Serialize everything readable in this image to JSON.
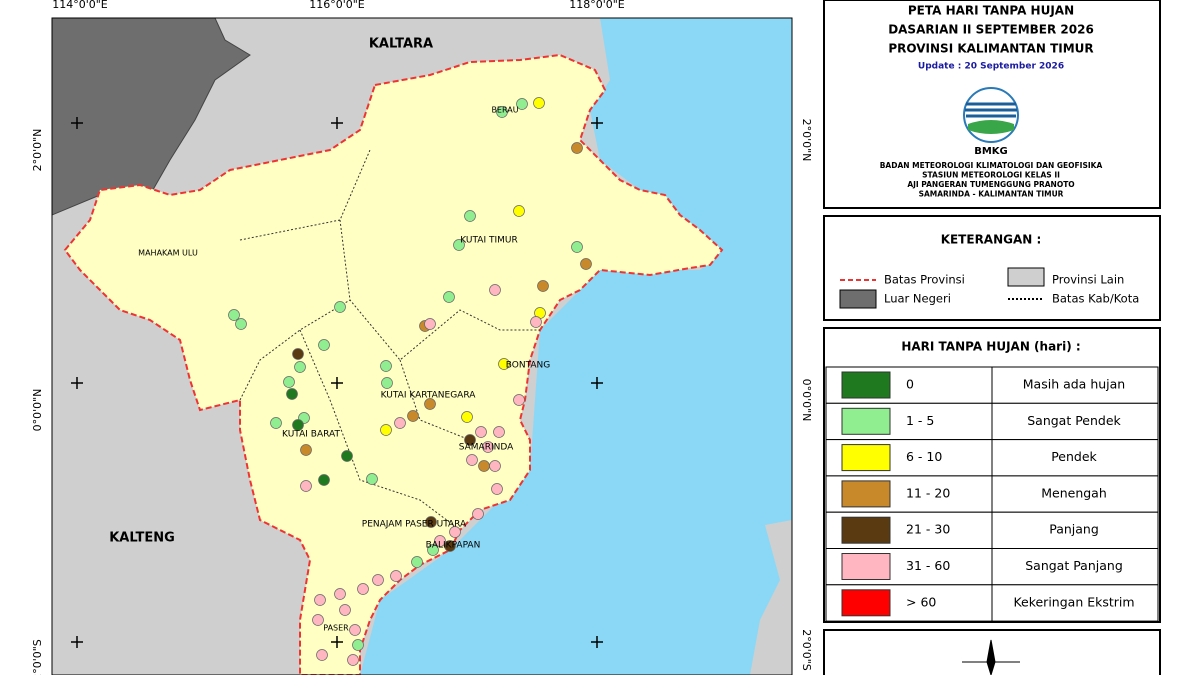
{
  "map": {
    "region_labels": [
      "KALTARA",
      "KALTENG",
      "BERAU",
      "KUTAI TIMUR",
      "MAHAKAM ULU",
      "BONTANG",
      "KUTAI KARTANEGARA",
      "KUTAI BARAT",
      "SAMARINDA",
      "PENAJAM PASER UTARA",
      "BALIKPAPAN",
      "PASER"
    ],
    "lon_labels": [
      "114°0'0\"E",
      "116°0'0\"E",
      "118°0'0\"E"
    ],
    "lat_labels": [
      "2°0'0\"N",
      "0°0'0\"N",
      "2°0'0\"S"
    ]
  },
  "header": {
    "title_lines": [
      "PETA HARI TANPA HUJAN",
      "DASARIAN II SEPTEMBER 2026",
      "PROVINSI KALIMANTAN TIMUR"
    ],
    "update": "Update : 20 September 2026",
    "logo_text": "BMKG",
    "agency_lines": [
      "BADAN METEOROLOGI KLIMATOLOGI DAN GEOFISIKA",
      "STASIUN METEOROLOGI KELAS II",
      "AJI PANGERAN TUMENGGUNG PRANOTO",
      "SAMARINDA - KALIMANTAN TIMUR"
    ]
  },
  "keterangan": {
    "title": "KETERANGAN :",
    "items": [
      "Batas Provinsi",
      "Provinsi Lain",
      "Luar Negeri",
      "Batas Kab/Kota"
    ]
  },
  "legend": {
    "title": "HARI TANPA HUJAN (hari) :",
    "rows": [
      {
        "range": "0",
        "label": "Masih ada hujan",
        "color": "#1f7a1f"
      },
      {
        "range": "1 - 5",
        "label": "Sangat Pendek",
        "color": "#90ee90"
      },
      {
        "range": "6 - 10",
        "label": "Pendek",
        "color": "#ffff00"
      },
      {
        "range": "11 - 20",
        "label": "Menengah",
        "color": "#c8892a"
      },
      {
        "range": "21 - 30",
        "label": "Panjang",
        "color": "#5a3a10"
      },
      {
        "range": "31 - 60",
        "label": "Sangat Panjang",
        "color": "#ffb6c1"
      },
      {
        "range": "> 60",
        "label": "Kekeringan Ekstrim",
        "color": "#ff0000"
      }
    ]
  }
}
